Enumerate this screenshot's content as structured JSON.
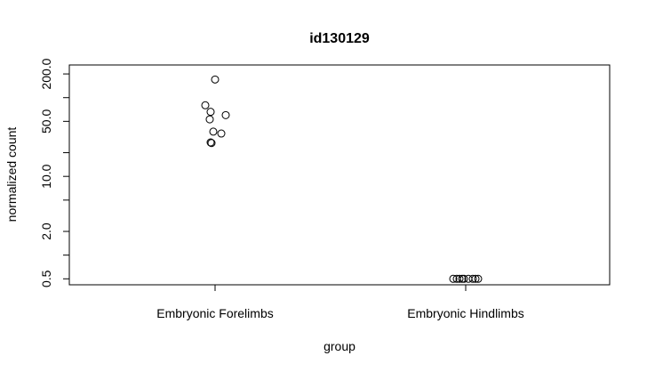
{
  "chart_data": {
    "type": "scatter",
    "title": "id130129",
    "xlabel": "group",
    "ylabel": "normalized count",
    "y_scale": "log",
    "ylim": [
      0.42,
      260
    ],
    "categories": [
      "Embryonic Forelimbs",
      "Embryonic Hindlimbs"
    ],
    "y_ticks": [
      {
        "value": 0.5,
        "label": "0.5"
      },
      {
        "value": 1,
        "label": ""
      },
      {
        "value": 2,
        "label": "2.0"
      },
      {
        "value": 5,
        "label": ""
      },
      {
        "value": 10,
        "label": "10.0"
      },
      {
        "value": 20,
        "label": ""
      },
      {
        "value": 50,
        "label": "50.0"
      },
      {
        "value": 100,
        "label": ""
      },
      {
        "value": 200,
        "label": "200.0"
      }
    ],
    "points": [
      {
        "group": "Embryonic Forelimbs",
        "jitter": 0.0,
        "y": 170
      },
      {
        "group": "Embryonic Forelimbs",
        "jitter": -0.11,
        "y": 80
      },
      {
        "group": "Embryonic Forelimbs",
        "jitter": -0.05,
        "y": 66
      },
      {
        "group": "Embryonic Forelimbs",
        "jitter": 0.12,
        "y": 60
      },
      {
        "group": "Embryonic Forelimbs",
        "jitter": -0.06,
        "y": 53
      },
      {
        "group": "Embryonic Forelimbs",
        "jitter": -0.02,
        "y": 37
      },
      {
        "group": "Embryonic Forelimbs",
        "jitter": 0.07,
        "y": 35
      },
      {
        "group": "Embryonic Forelimbs",
        "jitter": -0.05,
        "y": 27
      },
      {
        "group": "Embryonic Forelimbs",
        "jitter": -0.04,
        "y": 26.5
      },
      {
        "group": "Embryonic Hindlimbs",
        "jitter": -0.14,
        "y": 0.5
      },
      {
        "group": "Embryonic Hindlimbs",
        "jitter": -0.1,
        "y": 0.5
      },
      {
        "group": "Embryonic Hindlimbs",
        "jitter": -0.07,
        "y": 0.5
      },
      {
        "group": "Embryonic Hindlimbs",
        "jitter": -0.04,
        "y": 0.5
      },
      {
        "group": "Embryonic Hindlimbs",
        "jitter": -0.02,
        "y": 0.5
      },
      {
        "group": "Embryonic Hindlimbs",
        "jitter": 0.03,
        "y": 0.5
      },
      {
        "group": "Embryonic Hindlimbs",
        "jitter": 0.08,
        "y": 0.5
      },
      {
        "group": "Embryonic Hindlimbs",
        "jitter": 0.11,
        "y": 0.5
      },
      {
        "group": "Embryonic Hindlimbs",
        "jitter": 0.14,
        "y": 0.5
      }
    ],
    "grid": false,
    "legend": "none"
  }
}
